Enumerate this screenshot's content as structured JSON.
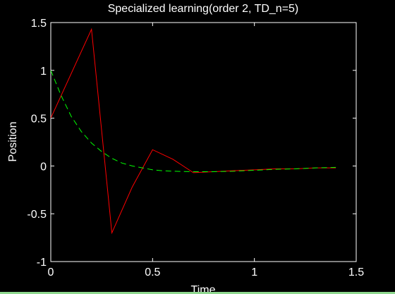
{
  "chart_data": {
    "type": "line",
    "title": "Specialized learning(order 2, TD_n=5)",
    "xlabel": "Time",
    "ylabel": "Position",
    "xlim": [
      0,
      1.5
    ],
    "ylim": [
      -1,
      1.5
    ],
    "xticks": [
      "0",
      "0.5",
      "1",
      "1.5"
    ],
    "yticks": [
      "-1",
      "-0.5",
      "0",
      "0.5",
      "1",
      "1.5"
    ],
    "grid": false,
    "series": [
      {
        "color": "#ff0000",
        "style": "solid",
        "x": [
          0,
          0.2,
          0.3,
          0.4,
          0.5,
          0.6,
          0.7,
          0.8,
          0.9,
          1.0,
          1.1,
          1.2,
          1.3,
          1.4
        ],
        "y": [
          0.5,
          1.43,
          -0.7,
          -0.22,
          0.17,
          0.07,
          -0.07,
          -0.06,
          -0.05,
          -0.04,
          -0.03,
          -0.03,
          -0.02,
          -0.02
        ]
      },
      {
        "color": "#00ff00",
        "style": "dashed",
        "x": [
          0,
          0.05,
          0.1,
          0.15,
          0.2,
          0.25,
          0.3,
          0.35,
          0.4,
          0.45,
          0.5,
          0.55,
          0.6,
          0.7,
          0.8,
          0.9,
          1.0,
          1.1,
          1.2,
          1.3,
          1.4
        ],
        "y": [
          1.0,
          0.74,
          0.52,
          0.36,
          0.24,
          0.15,
          0.08,
          0.03,
          0.0,
          -0.02,
          -0.04,
          -0.05,
          -0.055,
          -0.06,
          -0.06,
          -0.055,
          -0.045,
          -0.035,
          -0.03,
          -0.02,
          -0.015
        ]
      }
    ]
  }
}
